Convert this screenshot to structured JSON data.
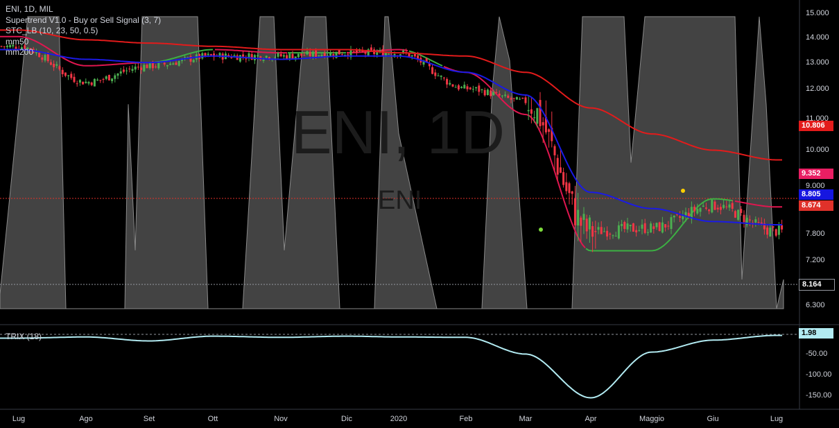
{
  "header": {
    "title": "ENI, 1D, MIL",
    "indicators": [
      "Supertrend V1.0 - Buy or Sell Signal (3, 7)",
      "STC_LB (10, 23, 50, 0.5)",
      "mm50",
      "mm200"
    ]
  },
  "watermark": {
    "symbol_tf": "ENI, 1D",
    "symbol": "ENI"
  },
  "trix_label": "TRIX (18)",
  "price_axis": [
    "15.000",
    "14.000",
    "13.000",
    "12.000",
    "11.000",
    "10.000",
    "9.000",
    "7.800",
    "7.200",
    "6.300"
  ],
  "trix_axis": [
    "-50.00",
    "-100.00",
    "-150.00"
  ],
  "time_axis": [
    "Lug",
    "Ago",
    "Set",
    "Ott",
    "Nov",
    "Dic",
    "2020",
    "Feb",
    "Mar",
    "Apr",
    "Maggio",
    "Giu",
    "Lug"
  ],
  "price_tags": [
    {
      "value": "10.806",
      "color": "#e31b1b"
    },
    {
      "value": "9.352",
      "color": "#e91e63"
    },
    {
      "value": "8.805",
      "color": "#1616e0"
    },
    {
      "value": "8.674",
      "color": "#e0312a"
    },
    {
      "value": "8.164",
      "color": "#000000"
    }
  ],
  "trix_tag": {
    "value": "1.98",
    "color": "#b2ebf2"
  },
  "colors": {
    "up": "#4caf50",
    "down": "#f23645",
    "mm50": "#1a1ae6",
    "mm200": "#e31b1b",
    "supertrend_up": "#3cb043",
    "supertrend_down": "#e0164f",
    "stc": "#8a8a8a",
    "trix": "#b2ebf2"
  },
  "chart_data": [
    {
      "type": "line",
      "title": "ENI, 1D, MIL",
      "x": [
        "Lug",
        "Ago",
        "Set",
        "Ott",
        "Nov",
        "Dic",
        "2020",
        "Feb",
        "Mar",
        "Apr",
        "Maggio",
        "Giu",
        "Lug"
      ],
      "ylim": [
        6.0,
        15.3
      ],
      "series": [
        {
          "name": "Close",
          "values": [
            14.3,
            13.2,
            13.7,
            14.0,
            14.0,
            14.1,
            14.1,
            13.0,
            12.6,
            8.6,
            8.7,
            9.4,
            8.6
          ]
        },
        {
          "name": "mm50",
          "values": [
            14.2,
            13.9,
            13.8,
            14.0,
            13.9,
            14.0,
            14.0,
            13.5,
            12.8,
            9.8,
            9.3,
            8.9,
            8.8
          ]
        },
        {
          "name": "mm200",
          "values": [
            14.8,
            14.5,
            14.4,
            14.3,
            14.2,
            14.2,
            14.1,
            14.0,
            13.5,
            12.4,
            11.6,
            11.1,
            10.8
          ]
        },
        {
          "name": "Supertrend V1.0 - Buy or Sell Signal (3, 7)",
          "values": [
            14.6,
            13.7,
            13.8,
            14.2,
            14.1,
            14.1,
            14.2,
            13.5,
            12.2,
            8.0,
            8.0,
            9.6,
            9.35
          ]
        },
        {
          "name": "STC_LB (10, 23, 50, 0.5)",
          "values": [
            0,
            100,
            0,
            100,
            0,
            100,
            0,
            100,
            0,
            100,
            100,
            0,
            25
          ]
        }
      ],
      "last_values": {
        "mm200": 10.806,
        "supertrend": 9.352,
        "mm50": 8.805,
        "close": 8.674,
        "stc": 8.164
      }
    },
    {
      "type": "line",
      "title": "TRIX (18)",
      "x": [
        "Lug",
        "Ago",
        "Set",
        "Ott",
        "Nov",
        "Dic",
        "2020",
        "Feb",
        "Mar",
        "Apr",
        "Maggio",
        "Giu",
        "Lug"
      ],
      "ylim": [
        -175,
        15
      ],
      "series": [
        {
          "name": "TRIX (18)",
          "values": [
            -5,
            -2,
            -12,
            0,
            -3,
            0,
            -2,
            -3,
            -45,
            -155,
            -40,
            -10,
            1.98
          ]
        }
      ]
    }
  ]
}
